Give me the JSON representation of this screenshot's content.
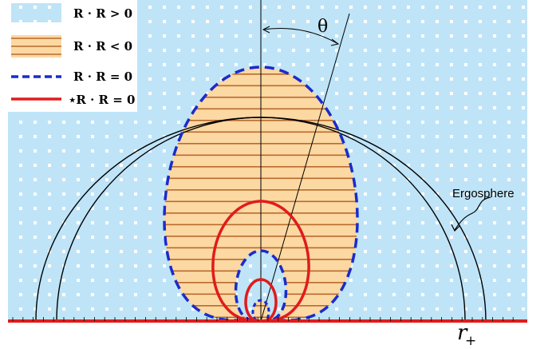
{
  "diagram": {
    "theta_label": "θ",
    "ergosphere_label": "Ergosphere",
    "horizon_label": "r",
    "horizon_subscript": "+",
    "colors": {
      "positive_bg": "#bfe4f7",
      "positive_dot": "#ffffff",
      "negative_fill": "#fcd8a2",
      "negative_stripe": "#b76a2e",
      "zero_contour": "#1a2bcc",
      "dual_contour": "#e11b1b",
      "outline": "#000000"
    }
  },
  "legend": {
    "items": [
      {
        "label": "R · R > 0",
        "swatch": "positive"
      },
      {
        "label": "R · R < 0",
        "swatch": "negative"
      },
      {
        "label": "R · R = 0",
        "swatch": "dashed-blue"
      },
      {
        "label": "⋆R · R = 0",
        "swatch": "solid-red"
      }
    ]
  }
}
